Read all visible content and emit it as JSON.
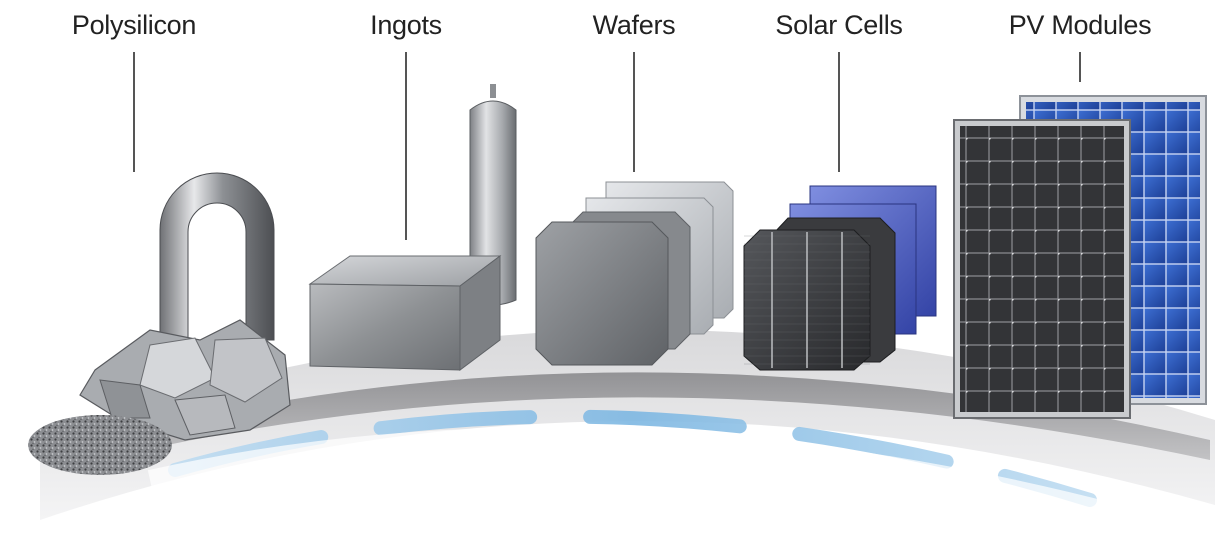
{
  "stages": [
    {
      "key": "polysilicon",
      "label": "Polysilicon"
    },
    {
      "key": "ingots",
      "label": "Ingots"
    },
    {
      "key": "wafers",
      "label": "Wafers"
    },
    {
      "key": "solar_cells",
      "label": "Solar Cells"
    },
    {
      "key": "pv_modules",
      "label": "PV Modules"
    }
  ],
  "colors": {
    "label_text": "#222222",
    "leader_line": "#555555",
    "platform_top": "#e9e9ea",
    "platform_rim": "#9a9a9c",
    "glow_blue": "#8fc3e6",
    "silicon_gray": "#9c9fa3",
    "cell_dark": "#3b3c3f",
    "cell_blue": "#4f5fc4",
    "module_blue": "#2f57b8"
  }
}
